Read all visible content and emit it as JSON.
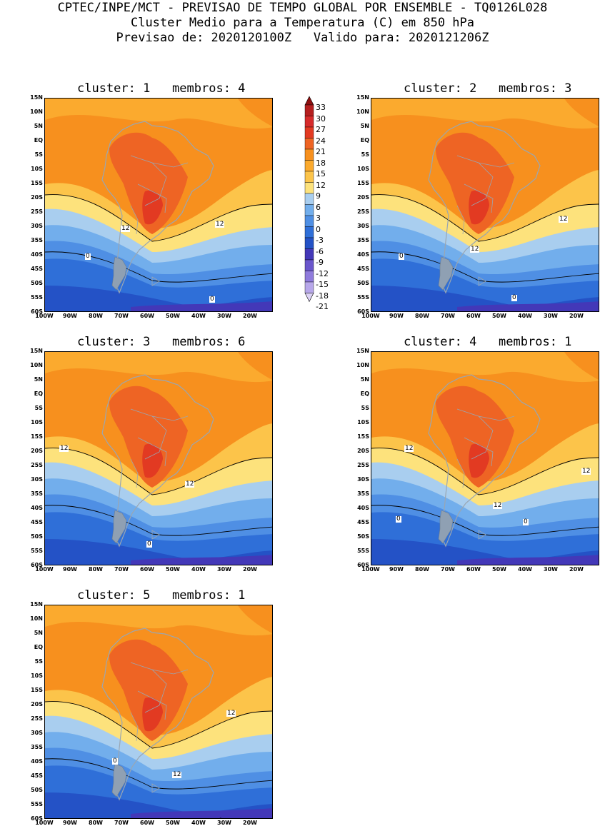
{
  "header": {
    "line1": "CPTEC/INPE/MCT - PREVISAO DE TEMPO GLOBAL POR ENSEMBLE - TQ0126L028",
    "line2": "Cluster Medio para a Temperatura (C) em 850 hPa",
    "line3": "Previsao de: 2020120100Z   Valido para: 2020121206Z"
  },
  "axes": {
    "lat_ticks": [
      "15N",
      "10N",
      "5N",
      "EQ",
      "5S",
      "10S",
      "15S",
      "20S",
      "25S",
      "30S",
      "35S",
      "40S",
      "45S",
      "50S",
      "55S",
      "60S"
    ],
    "lon_ticks": [
      "100W",
      "90W",
      "80W",
      "70W",
      "60W",
      "50W",
      "40W",
      "30W",
      "20W"
    ]
  },
  "legend": {
    "labels": [
      "33",
      "30",
      "27",
      "24",
      "21",
      "18",
      "15",
      "12",
      "9",
      "6",
      "3",
      "0",
      "-3",
      "-6",
      "-9",
      "-12",
      "-15",
      "-18",
      "-21"
    ],
    "colors": {
      "c33": "#8f0f0f",
      "c30": "#b51f1f",
      "c27": "#d62b2b",
      "c24": "#e23a22",
      "c21": "#ee6424",
      "c18": "#f7901e",
      "c15": "#fbaa2e",
      "c12": "#fcc44a",
      "c9": "#fde27c",
      "c6": "#a9ceef",
      "c3": "#72aeec",
      "c0": "#4f8fe4",
      "cm3": "#2f6fd8",
      "cm6": "#2452c6",
      "cm9": "#4338b8",
      "cm12": "#6a56cc",
      "cm15": "#8f7bdc",
      "cm18": "#b7a7ea",
      "cm21": "#ddd3f6"
    }
  },
  "panels": [
    {
      "title": "cluster: 1   membros: 4",
      "labels": [
        "12",
        "12",
        "0",
        "0"
      ]
    },
    {
      "title": "cluster: 2   membros: 3",
      "labels": [
        "12",
        "12",
        "0",
        "0"
      ]
    },
    {
      "title": "cluster: 3   membros: 6",
      "labels": [
        "12",
        "12",
        "0"
      ]
    },
    {
      "title": "cluster: 4   membros: 1",
      "labels": [
        "12",
        "12",
        "12",
        "0",
        "0"
      ]
    },
    {
      "title": "cluster: 5   membros: 1",
      "labels": [
        "12",
        "12",
        "0",
        "0"
      ]
    }
  ]
}
